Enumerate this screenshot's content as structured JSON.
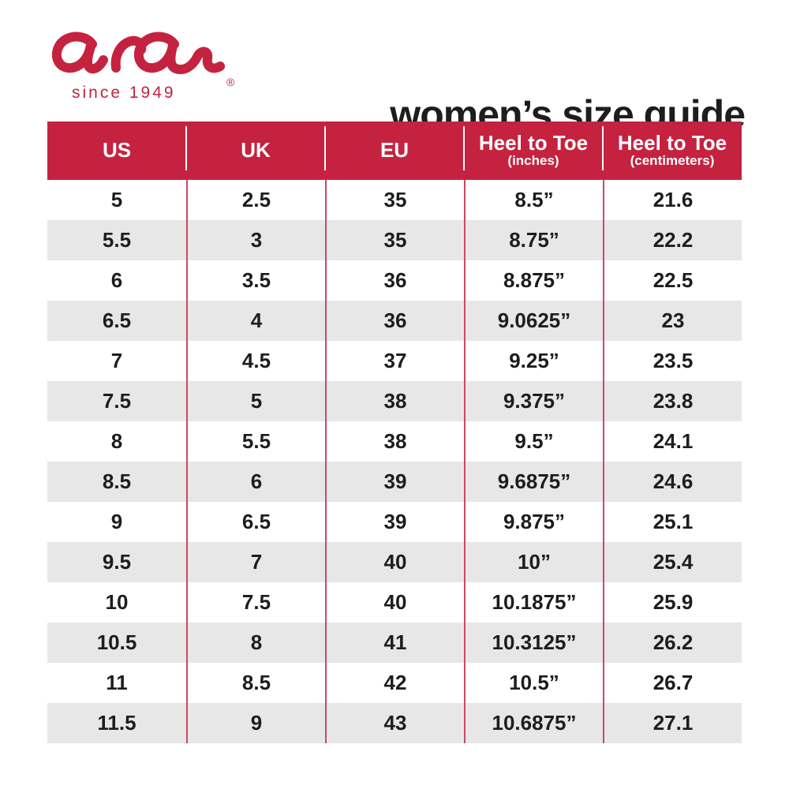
{
  "brand": {
    "logo_text": "ara",
    "registered_mark": "®",
    "tagline": "since 1949",
    "brand_red": "#c52240"
  },
  "page": {
    "title": "women’s size guide",
    "background": "#ffffff",
    "text_color": "#1d1d1b"
  },
  "table": {
    "header_bg": "#c52240",
    "header_text_color": "#ffffff",
    "alt_row_bg": "#e7e7e7",
    "divider_color": "#c94a62",
    "columns": [
      {
        "label": "US",
        "sublabel": ""
      },
      {
        "label": "UK",
        "sublabel": ""
      },
      {
        "label": "EU",
        "sublabel": ""
      },
      {
        "label": "Heel to Toe",
        "sublabel": "(inches)"
      },
      {
        "label": "Heel to Toe",
        "sublabel": "(centimeters)"
      }
    ],
    "rows": [
      [
        "5",
        "2.5",
        "35",
        "8.5”",
        "21.6"
      ],
      [
        "5.5",
        "3",
        "35",
        "8.75”",
        "22.2"
      ],
      [
        "6",
        "3.5",
        "36",
        "8.875”",
        "22.5"
      ],
      [
        "6.5",
        "4",
        "36",
        "9.0625”",
        "23"
      ],
      [
        "7",
        "4.5",
        "37",
        "9.25”",
        "23.5"
      ],
      [
        "7.5",
        "5",
        "38",
        "9.375”",
        "23.8"
      ],
      [
        "8",
        "5.5",
        "38",
        "9.5”",
        "24.1"
      ],
      [
        "8.5",
        "6",
        "39",
        "9.6875”",
        "24.6"
      ],
      [
        "9",
        "6.5",
        "39",
        "9.875”",
        "25.1"
      ],
      [
        "9.5",
        "7",
        "40",
        "10”",
        "25.4"
      ],
      [
        "10",
        "7.5",
        "40",
        "10.1875”",
        "25.9"
      ],
      [
        "10.5",
        "8",
        "41",
        "10.3125”",
        "26.2"
      ],
      [
        "11",
        "8.5",
        "42",
        "10.5”",
        "26.7"
      ],
      [
        "11.5",
        "9",
        "43",
        "10.6875”",
        "27.1"
      ]
    ]
  },
  "chart_data": {
    "type": "table",
    "title": "women’s size guide",
    "columns": [
      "US",
      "UK",
      "EU",
      "Heel to Toe (inches)",
      "Heel to Toe (centimeters)"
    ],
    "rows": [
      [
        "5",
        "2.5",
        "35",
        "8.5”",
        "21.6"
      ],
      [
        "5.5",
        "3",
        "35",
        "8.75”",
        "22.2"
      ],
      [
        "6",
        "3.5",
        "36",
        "8.875”",
        "22.5"
      ],
      [
        "6.5",
        "4",
        "36",
        "9.0625”",
        "23"
      ],
      [
        "7",
        "4.5",
        "37",
        "9.25”",
        "23.5"
      ],
      [
        "7.5",
        "5",
        "38",
        "9.375”",
        "23.8"
      ],
      [
        "8",
        "5.5",
        "38",
        "9.5”",
        "24.1"
      ],
      [
        "8.5",
        "6",
        "39",
        "9.6875”",
        "24.6"
      ],
      [
        "9",
        "6.5",
        "39",
        "9.875”",
        "25.1"
      ],
      [
        "9.5",
        "7",
        "40",
        "10”",
        "25.4"
      ],
      [
        "10",
        "7.5",
        "40",
        "10.1875”",
        "25.9"
      ],
      [
        "10.5",
        "8",
        "41",
        "10.3125”",
        "26.2"
      ],
      [
        "11",
        "8.5",
        "42",
        "10.5”",
        "26.7"
      ],
      [
        "11.5",
        "9",
        "43",
        "10.6875”",
        "27.1"
      ]
    ]
  }
}
